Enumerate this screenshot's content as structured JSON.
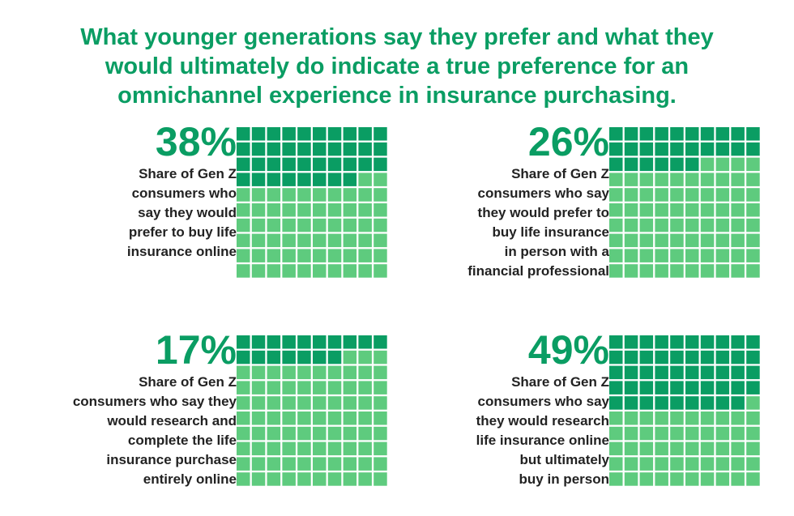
{
  "headline": {
    "lines": [
      "What younger generations say they prefer and what they",
      "would ultimately do indicate a true preference for an",
      "omnichannel experience in insurance purchasing."
    ]
  },
  "colors": {
    "accent": "#0a9d63",
    "filled": "#0a9d63",
    "empty": "#5ecb7e",
    "text": "#222222"
  },
  "chart_data": [
    {
      "type": "waffle",
      "value_percent": 38,
      "label": "38%",
      "grid": [
        10,
        10
      ],
      "description": [
        "Share of Gen Z",
        "consumers who",
        "say they would",
        "prefer to buy life",
        "insurance online"
      ]
    },
    {
      "type": "waffle",
      "value_percent": 26,
      "label": "26%",
      "grid": [
        10,
        10
      ],
      "description": [
        "Share of Gen Z",
        "consumers who say",
        "they would prefer to",
        "buy life insurance",
        "in person with a",
        "financial professional"
      ]
    },
    {
      "type": "waffle",
      "value_percent": 17,
      "label": "17%",
      "grid": [
        10,
        10
      ],
      "description": [
        "Share of Gen Z",
        "consumers who say they",
        "would research and",
        "complete the life",
        "insurance purchase",
        "entirely online"
      ]
    },
    {
      "type": "waffle",
      "value_percent": 49,
      "label": "49%",
      "grid": [
        10,
        10
      ],
      "description": [
        "Share of Gen Z",
        "consumers who say",
        "they would research",
        "life insurance online",
        "but ultimately",
        "buy in person"
      ]
    }
  ]
}
